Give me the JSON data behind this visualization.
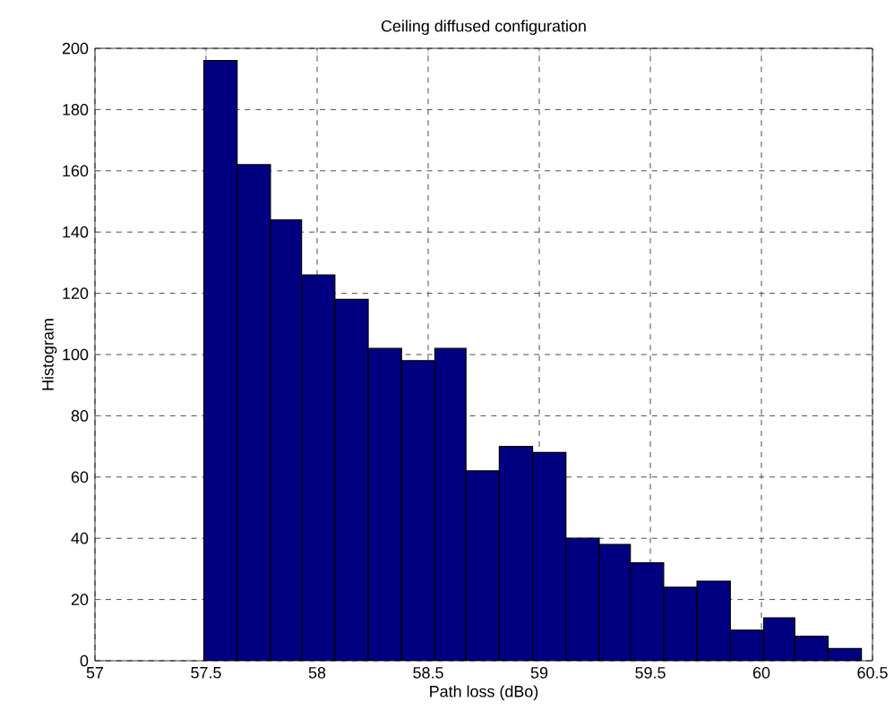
{
  "chart_data": {
    "type": "histogram",
    "title": "Ceiling diffused configuration",
    "xlabel": "Path loss (dBo)",
    "ylabel": "Histogram",
    "bins": [
      57.49,
      57.64,
      57.79,
      57.93,
      58.08,
      58.23,
      58.38,
      58.53,
      58.67,
      58.82,
      58.97,
      59.12,
      59.27,
      59.41,
      59.56,
      59.71,
      59.86,
      60.01,
      60.15,
      60.3,
      60.45
    ],
    "values": [
      196,
      162,
      144,
      126,
      118,
      102,
      98,
      102,
      62,
      70,
      68,
      40,
      38,
      32,
      24,
      26,
      10,
      14,
      8,
      4
    ],
    "color": "#000080",
    "xlim": [
      57,
      60.5
    ],
    "ylim": [
      0,
      200
    ],
    "xticks": [
      57,
      57.5,
      58,
      58.5,
      59,
      59.5,
      60,
      60.5
    ],
    "yticks": [
      0,
      20,
      40,
      60,
      80,
      100,
      120,
      140,
      160,
      180,
      200
    ],
    "grid": true
  }
}
